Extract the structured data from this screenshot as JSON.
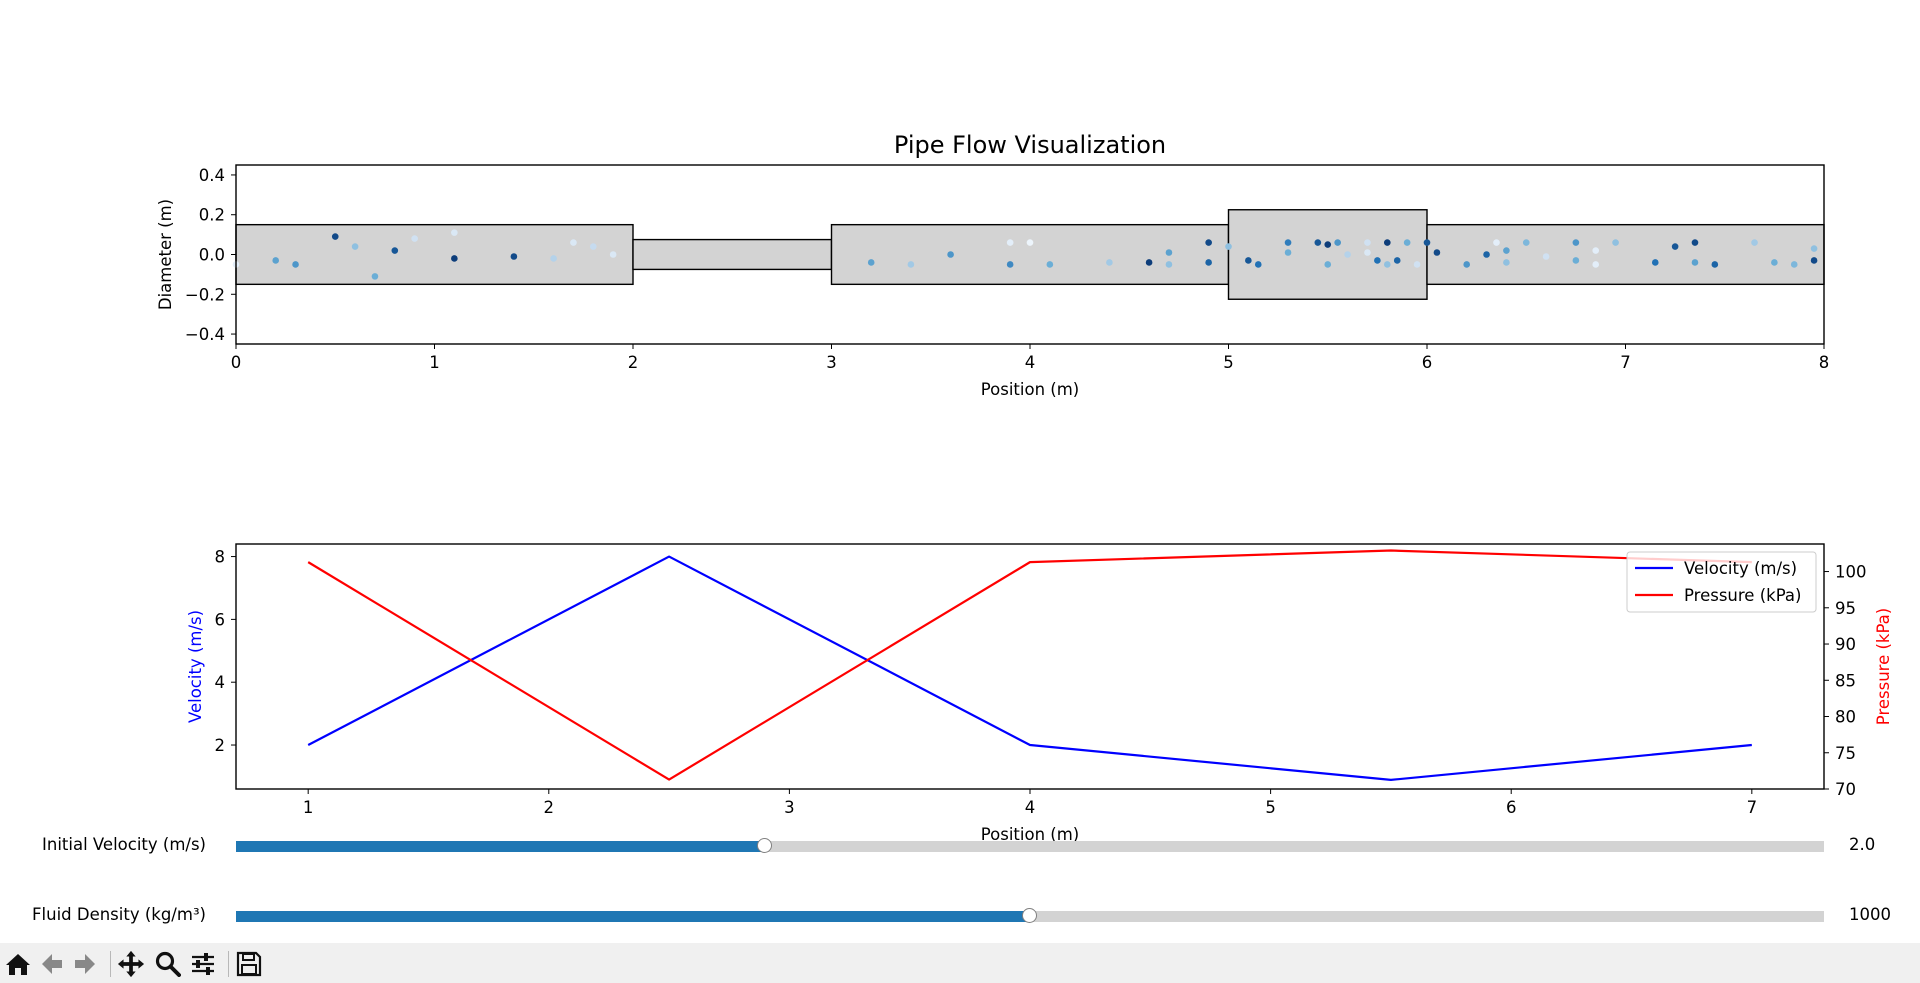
{
  "chart_data": [
    {
      "type": "pipe-diagram",
      "title": "Pipe Flow Visualization",
      "xlabel": "Position (m)",
      "ylabel": "Diameter (m)",
      "xlim": [
        0,
        8
      ],
      "ylim": [
        -0.45,
        0.45
      ],
      "xticks": [
        "0",
        "1",
        "2",
        "3",
        "4",
        "5",
        "6",
        "7",
        "8"
      ],
      "yticks": [
        "−0.4",
        "−0.2",
        "0.0",
        "0.2",
        "0.4"
      ],
      "pipe_sections": [
        {
          "start": 0,
          "end": 2,
          "diameter": 0.3
        },
        {
          "start": 2,
          "end": 3,
          "diameter": 0.15
        },
        {
          "start": 3,
          "end": 5,
          "diameter": 0.3
        },
        {
          "start": 5,
          "end": 6,
          "diameter": 0.45
        },
        {
          "start": 6,
          "end": 8,
          "diameter": 0.3
        }
      ],
      "pipe_color": "#d3d3d3",
      "particles": [
        [
          0.0,
          -0.05,
          0.1
        ],
        [
          0.2,
          -0.03,
          0.55
        ],
        [
          0.3,
          -0.05,
          0.6
        ],
        [
          0.5,
          0.09,
          0.9
        ],
        [
          0.6,
          0.04,
          0.4
        ],
        [
          0.7,
          -0.11,
          0.5
        ],
        [
          0.8,
          0.02,
          0.85
        ],
        [
          0.9,
          0.08,
          0.2
        ],
        [
          1.1,
          0.11,
          0.15
        ],
        [
          1.1,
          -0.02,
          0.95
        ],
        [
          1.4,
          -0.01,
          0.9
        ],
        [
          1.6,
          -0.02,
          0.3
        ],
        [
          1.7,
          0.06,
          0.15
        ],
        [
          1.8,
          0.04,
          0.25
        ],
        [
          1.9,
          0.0,
          0.15
        ],
        [
          3.2,
          -0.04,
          0.55
        ],
        [
          3.4,
          -0.05,
          0.35
        ],
        [
          3.6,
          0.0,
          0.6
        ],
        [
          3.9,
          0.06,
          0.1
        ],
        [
          3.9,
          -0.05,
          0.65
        ],
        [
          4.0,
          0.06,
          0.05
        ],
        [
          4.1,
          -0.05,
          0.5
        ],
        [
          4.4,
          -0.04,
          0.35
        ],
        [
          4.6,
          -0.04,
          0.95
        ],
        [
          4.7,
          -0.05,
          0.4
        ],
        [
          4.7,
          0.01,
          0.55
        ],
        [
          4.9,
          0.06,
          0.9
        ],
        [
          4.9,
          -0.04,
          0.8
        ],
        [
          5.0,
          0.04,
          0.4
        ],
        [
          5.1,
          -0.03,
          0.85
        ],
        [
          5.15,
          -0.05,
          0.75
        ],
        [
          5.3,
          0.06,
          0.7
        ],
        [
          5.3,
          0.01,
          0.5
        ],
        [
          5.45,
          0.06,
          0.85
        ],
        [
          5.5,
          -0.05,
          0.5
        ],
        [
          5.5,
          0.05,
          0.95
        ],
        [
          5.55,
          0.06,
          0.6
        ],
        [
          5.6,
          0.0,
          0.3
        ],
        [
          5.7,
          0.06,
          0.2
        ],
        [
          5.7,
          0.01,
          0.15
        ],
        [
          5.75,
          -0.03,
          0.75
        ],
        [
          5.8,
          0.06,
          0.95
        ],
        [
          5.85,
          -0.03,
          0.8
        ],
        [
          5.8,
          -0.05,
          0.4
        ],
        [
          5.9,
          0.06,
          0.5
        ],
        [
          5.95,
          -0.05,
          0.2
        ],
        [
          6.0,
          0.06,
          0.85
        ],
        [
          6.05,
          0.01,
          0.9
        ],
        [
          6.2,
          -0.05,
          0.6
        ],
        [
          6.3,
          0.0,
          0.8
        ],
        [
          6.35,
          0.06,
          0.1
        ],
        [
          6.4,
          0.02,
          0.55
        ],
        [
          6.4,
          -0.04,
          0.4
        ],
        [
          6.5,
          0.06,
          0.45
        ],
        [
          6.6,
          -0.01,
          0.2
        ],
        [
          6.75,
          0.06,
          0.6
        ],
        [
          6.75,
          -0.03,
          0.5
        ],
        [
          6.85,
          0.02,
          0.1
        ],
        [
          6.85,
          -0.05,
          0.1
        ],
        [
          6.95,
          0.06,
          0.4
        ],
        [
          7.15,
          -0.04,
          0.75
        ],
        [
          7.25,
          0.04,
          0.85
        ],
        [
          7.35,
          0.06,
          0.9
        ],
        [
          7.35,
          -0.04,
          0.55
        ],
        [
          7.45,
          -0.05,
          0.8
        ],
        [
          7.65,
          0.06,
          0.35
        ],
        [
          7.75,
          -0.04,
          0.5
        ],
        [
          7.85,
          -0.05,
          0.45
        ],
        [
          7.95,
          0.03,
          0.4
        ],
        [
          7.95,
          -0.03,
          0.9
        ]
      ]
    },
    {
      "type": "line",
      "xlabel": "Position (m)",
      "xlim": [
        0.7,
        7.3
      ],
      "xticks": [
        "1",
        "2",
        "3",
        "4",
        "5",
        "6",
        "7"
      ],
      "x": [
        1,
        2.5,
        4,
        5.5,
        7
      ],
      "left_axis": {
        "label": "Velocity (m/s)",
        "ylim": [
          0.6,
          8.4
        ],
        "ticks": [
          "2",
          "4",
          "6",
          "8"
        ],
        "color": "#0000ff"
      },
      "right_axis": {
        "label": "Pressure (kPa)",
        "ylim": [
          70.0,
          103.8
        ],
        "ticks": [
          "70",
          "75",
          "80",
          "85",
          "90",
          "95",
          "100"
        ],
        "color": "#ff0000"
      },
      "series": [
        {
          "name": "Velocity (m/s)",
          "axis": "left",
          "color": "#0000ff",
          "values": [
            2.0,
            8.0,
            2.0,
            0.89,
            2.0
          ]
        },
        {
          "name": "Pressure (kPa)",
          "axis": "right",
          "color": "#ff0000",
          "values": [
            101.3,
            71.3,
            101.3,
            102.9,
            101.3
          ]
        }
      ],
      "legend_position": "top-right"
    }
  ],
  "sliders": [
    {
      "label": "Initial Velocity (m/s)",
      "value_text": "2.0",
      "fraction": 0.333
    },
    {
      "label": "Fluid Density (kg/m³)",
      "value_text": "1000",
      "fraction": 0.5
    }
  ],
  "toolbar": {
    "buttons": [
      "home-icon",
      "back-icon",
      "forward-icon",
      "pan-icon",
      "zoom-icon",
      "configure-subplots-icon",
      "save-icon"
    ]
  }
}
